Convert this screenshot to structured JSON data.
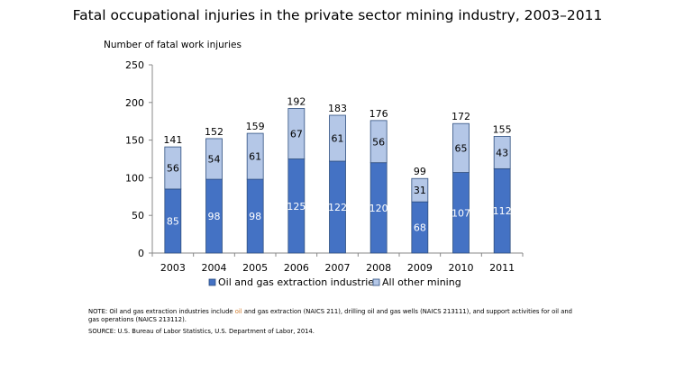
{
  "chart_data": {
    "type": "bar",
    "stacked": true,
    "title": "Fatal occupational injuries in the private sector mining industry, 2003–2011",
    "ylabel": "Number of fatal work injuries",
    "xlabel": "",
    "ylim": [
      0,
      250
    ],
    "yticks": [
      0,
      50,
      100,
      150,
      200,
      250
    ],
    "grid": false,
    "legend_position": "bottom",
    "categories": [
      "2003",
      "2004",
      "2005",
      "2006",
      "2007",
      "2008",
      "2009",
      "2010",
      "2011"
    ],
    "series": [
      {
        "name": "Oil and gas extraction industries",
        "color": "#4472C4",
        "values": [
          85,
          98,
          98,
          125,
          122,
          120,
          68,
          107,
          112
        ]
      },
      {
        "name": "All other mining",
        "color": "#B4C7E7",
        "values": [
          56,
          54,
          61,
          67,
          61,
          56,
          31,
          65,
          43
        ]
      }
    ],
    "totals": [
      141,
      152,
      159,
      192,
      183,
      176,
      99,
      172,
      155
    ]
  },
  "note": {
    "prefix": "NOTE: Oil and gas extraction industries include ",
    "highlight": "oil",
    "suffix": " and gas extraction (NAICS 211), drilling oil and gas wells (NAICS 213111), and support activities for oil and gas operations (NAICS 213112)."
  },
  "source": "SOURCE: U.S. Bureau of Labor Statistics, U.S. Department of Labor, 2014."
}
